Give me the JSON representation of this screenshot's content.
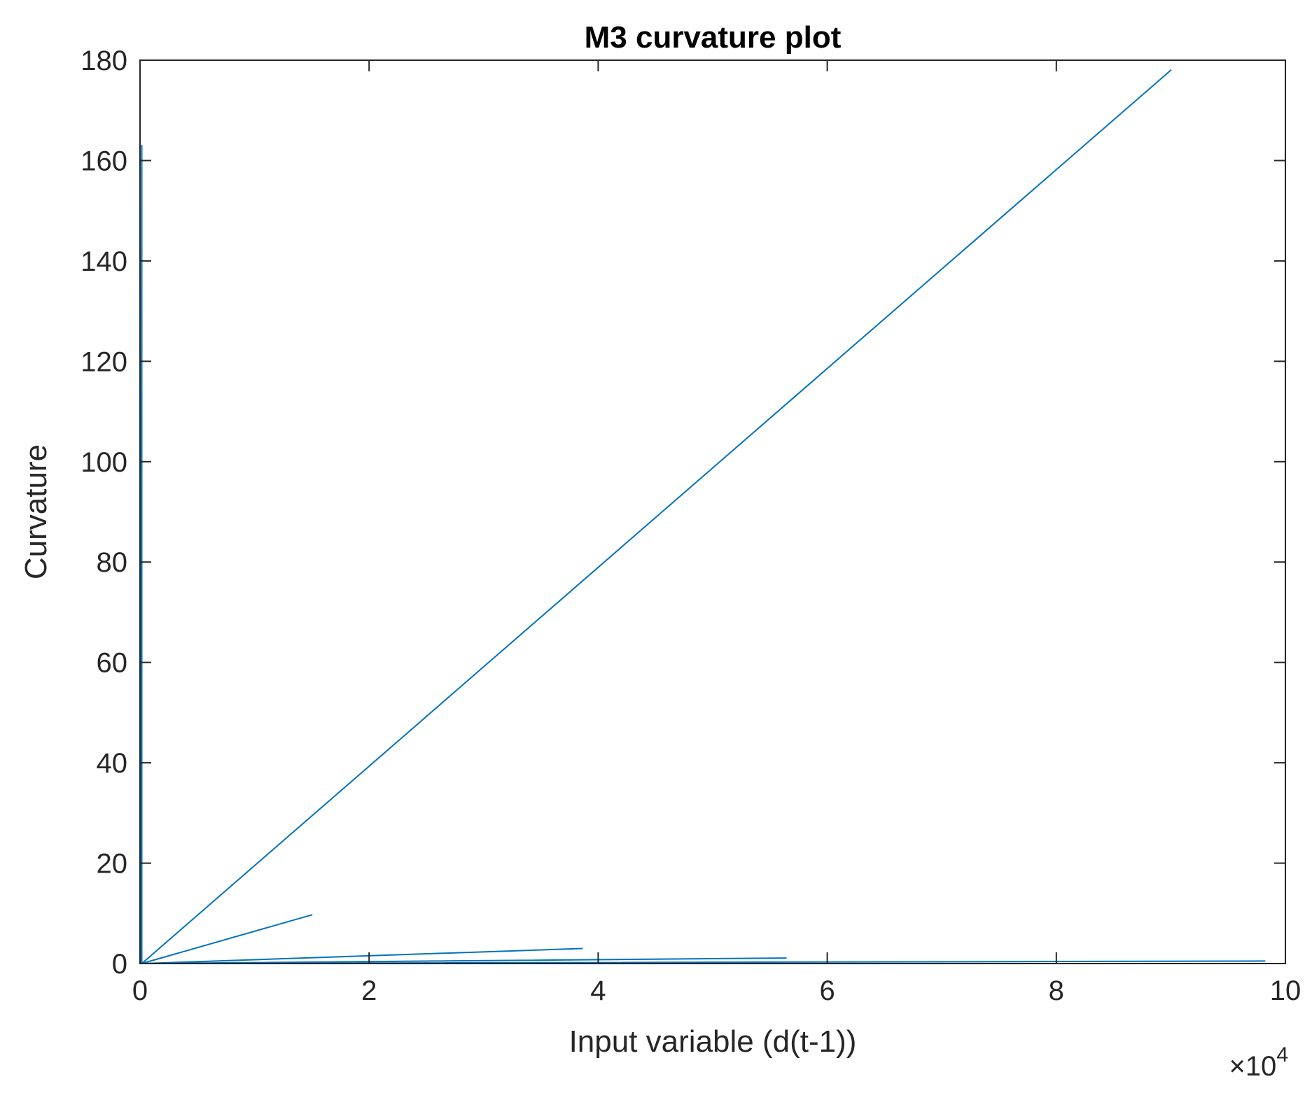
{
  "chart_data": {
    "type": "line",
    "title": "M3 curvature plot",
    "xlabel": "Input variable (d(t-1))",
    "ylabel": "Curvature",
    "x_exponent": {
      "base": "×10",
      "power": "4"
    },
    "xlim": [
      0,
      100000
    ],
    "ylim": [
      0,
      180
    ],
    "x_ticks": [
      0,
      20000,
      40000,
      60000,
      80000,
      100000
    ],
    "x_tick_labels": [
      "0",
      "2",
      "4",
      "6",
      "8",
      "10"
    ],
    "y_ticks": [
      0,
      20,
      40,
      60,
      80,
      100,
      120,
      140,
      160,
      180
    ],
    "y_tick_labels": [
      "0",
      "20",
      "40",
      "60",
      "80",
      "100",
      "120",
      "140",
      "160",
      "180"
    ],
    "grid": false,
    "line_color": "#0072BD",
    "series": [
      {
        "x": [
          150,
          150,
          100,
          150,
          90000,
          150,
          15000,
          150,
          38600,
          150,
          56400,
          150,
          98200,
          150,
          100000
        ],
        "y": [
          0,
          163,
          0,
          0,
          178,
          0,
          9.7,
          0,
          3,
          0,
          1.1,
          0,
          0.5,
          0,
          0
        ]
      }
    ]
  }
}
